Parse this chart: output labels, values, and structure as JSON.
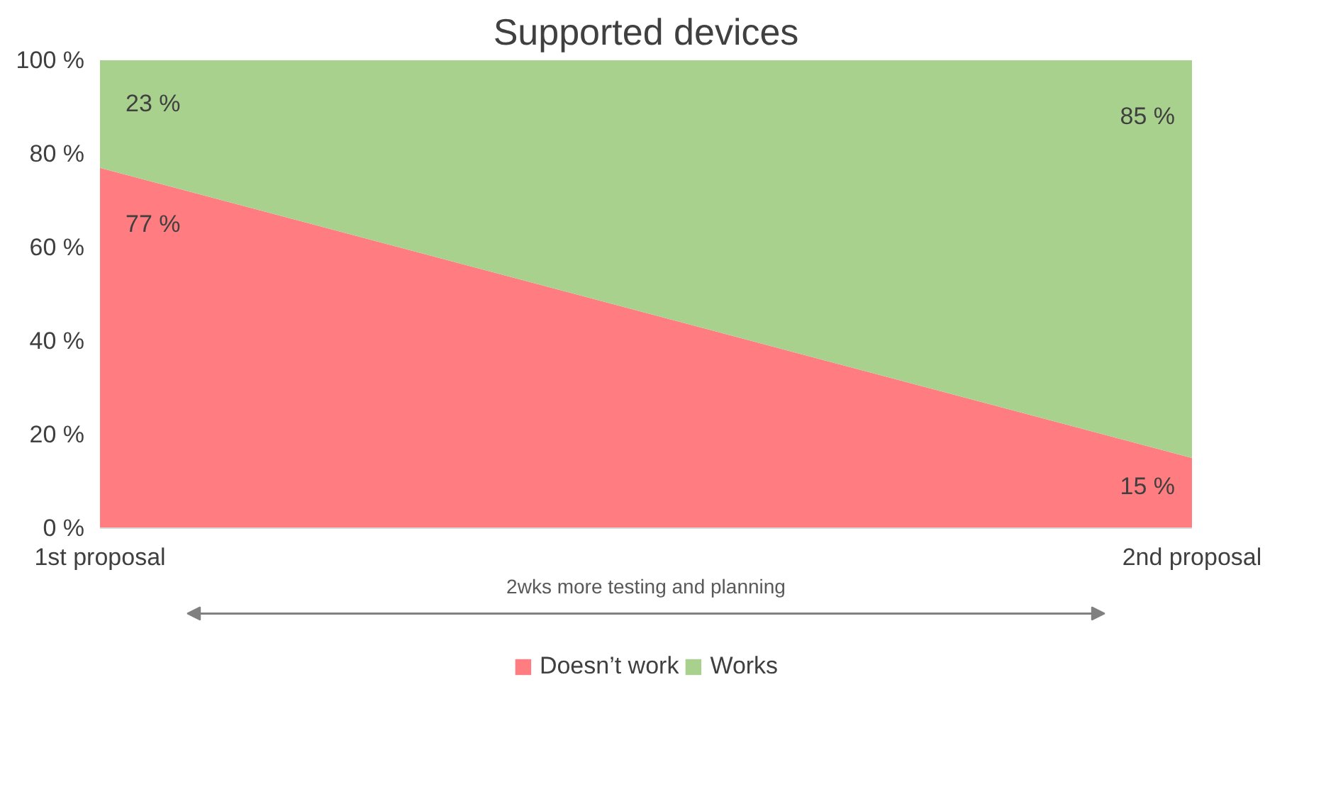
{
  "chart_data": {
    "type": "area",
    "stacked": true,
    "title": "Supported devices",
    "categories": [
      "1st proposal",
      "2nd proposal"
    ],
    "series": [
      {
        "name": "Doesn’t work",
        "color": "#ff7c80",
        "values": [
          77,
          15
        ],
        "value_labels": [
          "77 %",
          "15 %"
        ]
      },
      {
        "name": "Works",
        "color": "#a9d18e",
        "values": [
          23,
          85
        ],
        "value_labels": [
          "23 %",
          "85 %"
        ]
      }
    ],
    "ylim": [
      0,
      100
    ],
    "yticks": [
      {
        "value": 0,
        "label": "0 %"
      },
      {
        "value": 20,
        "label": "20 %"
      },
      {
        "value": 40,
        "label": "40 %"
      },
      {
        "value": 60,
        "label": "60 %"
      },
      {
        "value": 80,
        "label": "80 %"
      },
      {
        "value": 100,
        "label": "100 %"
      }
    ],
    "annotations": [
      "2wks more testing and planning"
    ],
    "legend": "bottom",
    "grid": false
  }
}
